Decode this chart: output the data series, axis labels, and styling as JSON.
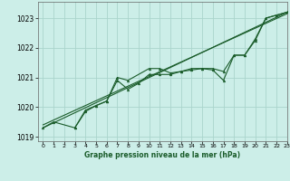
{
  "title": "Graphe pression niveau de la mer (hPa)",
  "bg_color": "#cceee8",
  "grid_color": "#aad4cc",
  "line_color": "#1a5c2a",
  "xlim": [
    -0.5,
    23
  ],
  "ylim": [
    1018.85,
    1023.55
  ],
  "yticks": [
    1019,
    1020,
    1021,
    1022,
    1023
  ],
  "xticks": [
    0,
    1,
    2,
    3,
    4,
    5,
    6,
    7,
    8,
    9,
    10,
    11,
    12,
    13,
    14,
    15,
    16,
    17,
    18,
    19,
    20,
    21,
    22,
    23
  ],
  "x_main": [
    0,
    1,
    3,
    4,
    5,
    6,
    7,
    8,
    10,
    11,
    12,
    13,
    14,
    15,
    16,
    17,
    18,
    19,
    20,
    21,
    22,
    23
  ],
  "y_main": [
    1019.3,
    1019.5,
    1019.3,
    1019.9,
    1020.05,
    1020.2,
    1021.0,
    1020.9,
    1021.3,
    1021.3,
    1021.15,
    1021.2,
    1021.3,
    1021.3,
    1021.3,
    1021.2,
    1021.75,
    1021.75,
    1022.3,
    1023.0,
    1023.1,
    1023.2
  ],
  "x_secondary": [
    3,
    4,
    5,
    6,
    7,
    8,
    9,
    10,
    11,
    12,
    13,
    14,
    15,
    16,
    17,
    18,
    19,
    20,
    21,
    22,
    23
  ],
  "y_secondary": [
    1019.3,
    1019.85,
    1020.05,
    1020.2,
    1020.9,
    1020.6,
    1020.8,
    1021.1,
    1021.1,
    1021.1,
    1021.2,
    1021.25,
    1021.3,
    1021.25,
    1020.9,
    1021.75,
    1021.75,
    1022.25,
    1023.0,
    1023.1,
    1023.2
  ],
  "trend1_x": [
    0,
    23
  ],
  "trend1_y": [
    1019.3,
    1023.2
  ],
  "trend2_x": [
    0,
    23
  ],
  "trend2_y": [
    1019.4,
    1023.15
  ]
}
